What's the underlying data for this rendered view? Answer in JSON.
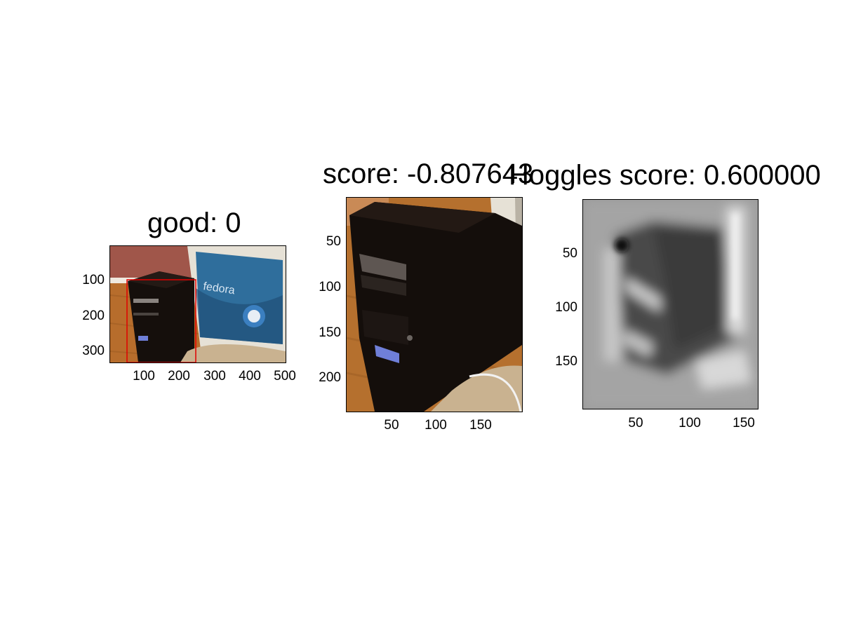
{
  "panels": [
    {
      "title": "good: 0",
      "xticks": [
        "100",
        "200",
        "300",
        "400",
        "500"
      ],
      "yticks": [
        "100",
        "200",
        "300"
      ],
      "box_color": "#e00000"
    },
    {
      "title": "score: -0.807643",
      "xticks": [
        "50",
        "100",
        "150"
      ],
      "yticks": [
        "50",
        "100",
        "150",
        "200"
      ]
    },
    {
      "title": "Hoggles score: 0.600000",
      "xticks": [
        "50",
        "100",
        "150"
      ],
      "yticks": [
        "50",
        "100",
        "150"
      ]
    }
  ],
  "screen_text": "fedora",
  "colors": {
    "wall": "#a0564a",
    "floor": "#b76d2c",
    "case": "#150f0c",
    "monitor_bezel": "#e6e1d6",
    "screen_blue": "#2f6e9c",
    "box": "#e00000"
  }
}
